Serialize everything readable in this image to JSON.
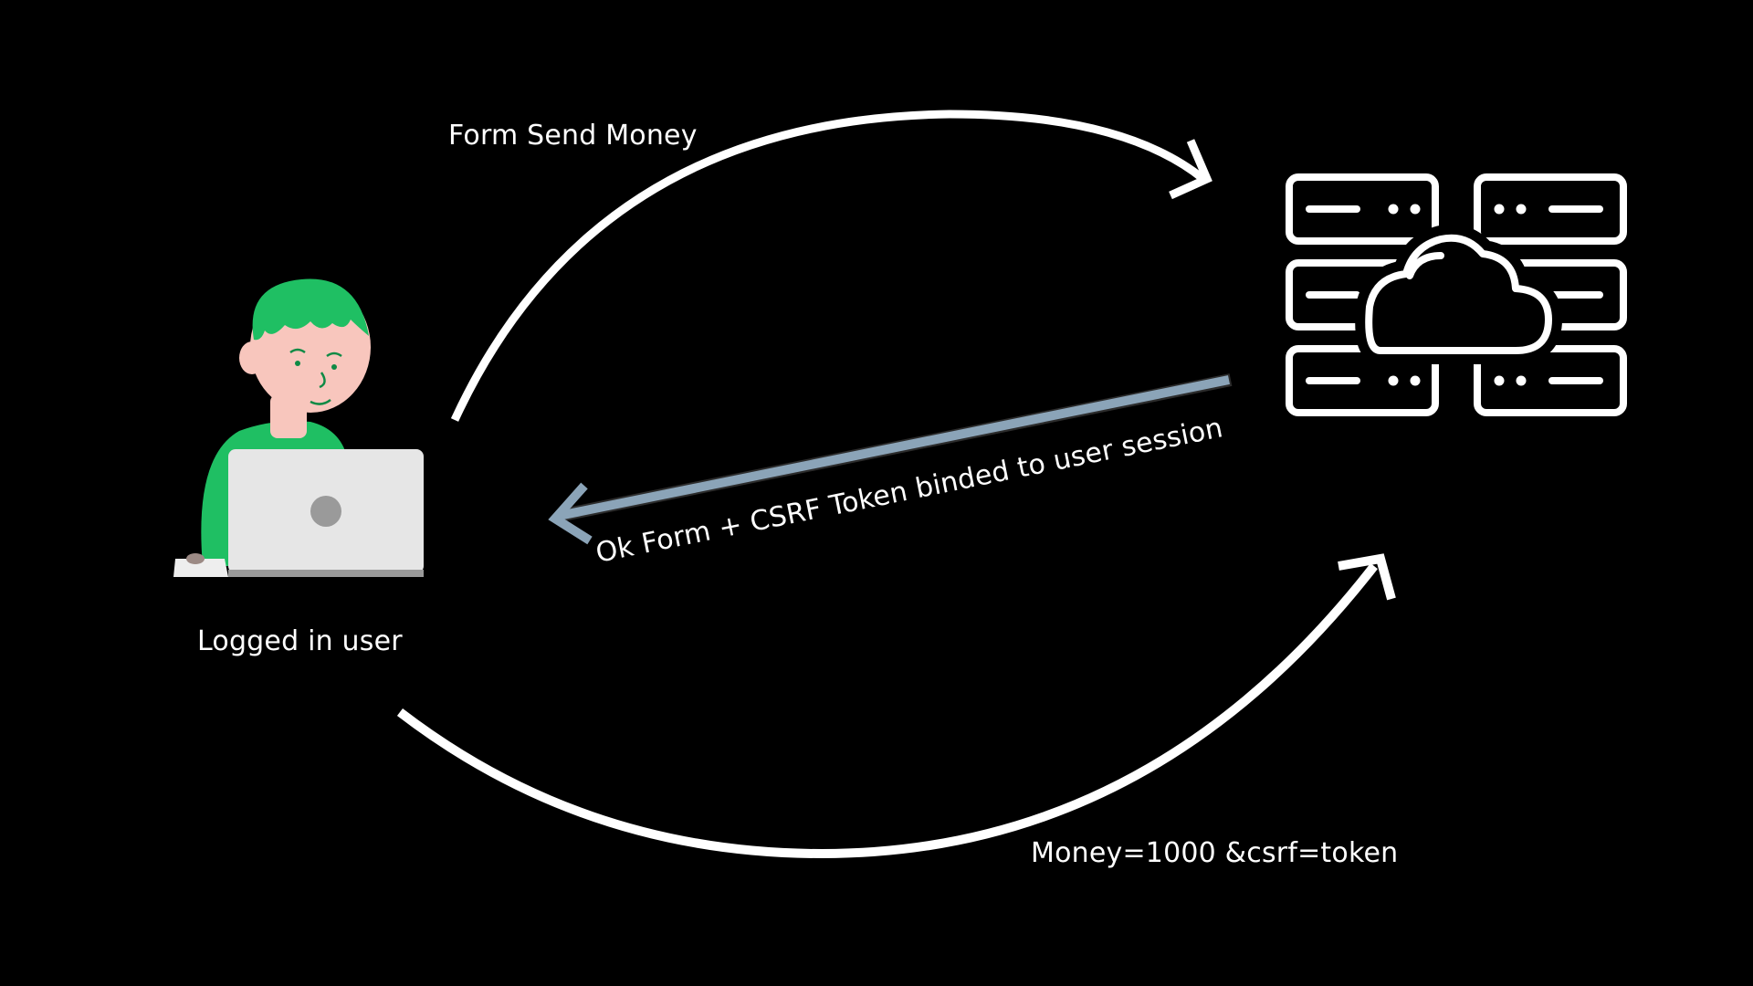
{
  "diagram": {
    "user_label": "Logged in user",
    "server_label": "",
    "arrow_request_label": "Form Send Money",
    "arrow_response_label": "Ok Form + CSRF Token binded to user session",
    "arrow_submit_label": "Money=1000 &csrf=token"
  },
  "colors": {
    "background": "#000000",
    "arrow": "#ffffff",
    "response_arrow": "#8ba4b8",
    "user_shirt": "#1fbf63",
    "user_skin": "#f8c6bd",
    "laptop": "#e6e6e6"
  },
  "icons": {
    "user": "person-at-laptop-illustration",
    "server": "server-rack-cloud-icon"
  }
}
